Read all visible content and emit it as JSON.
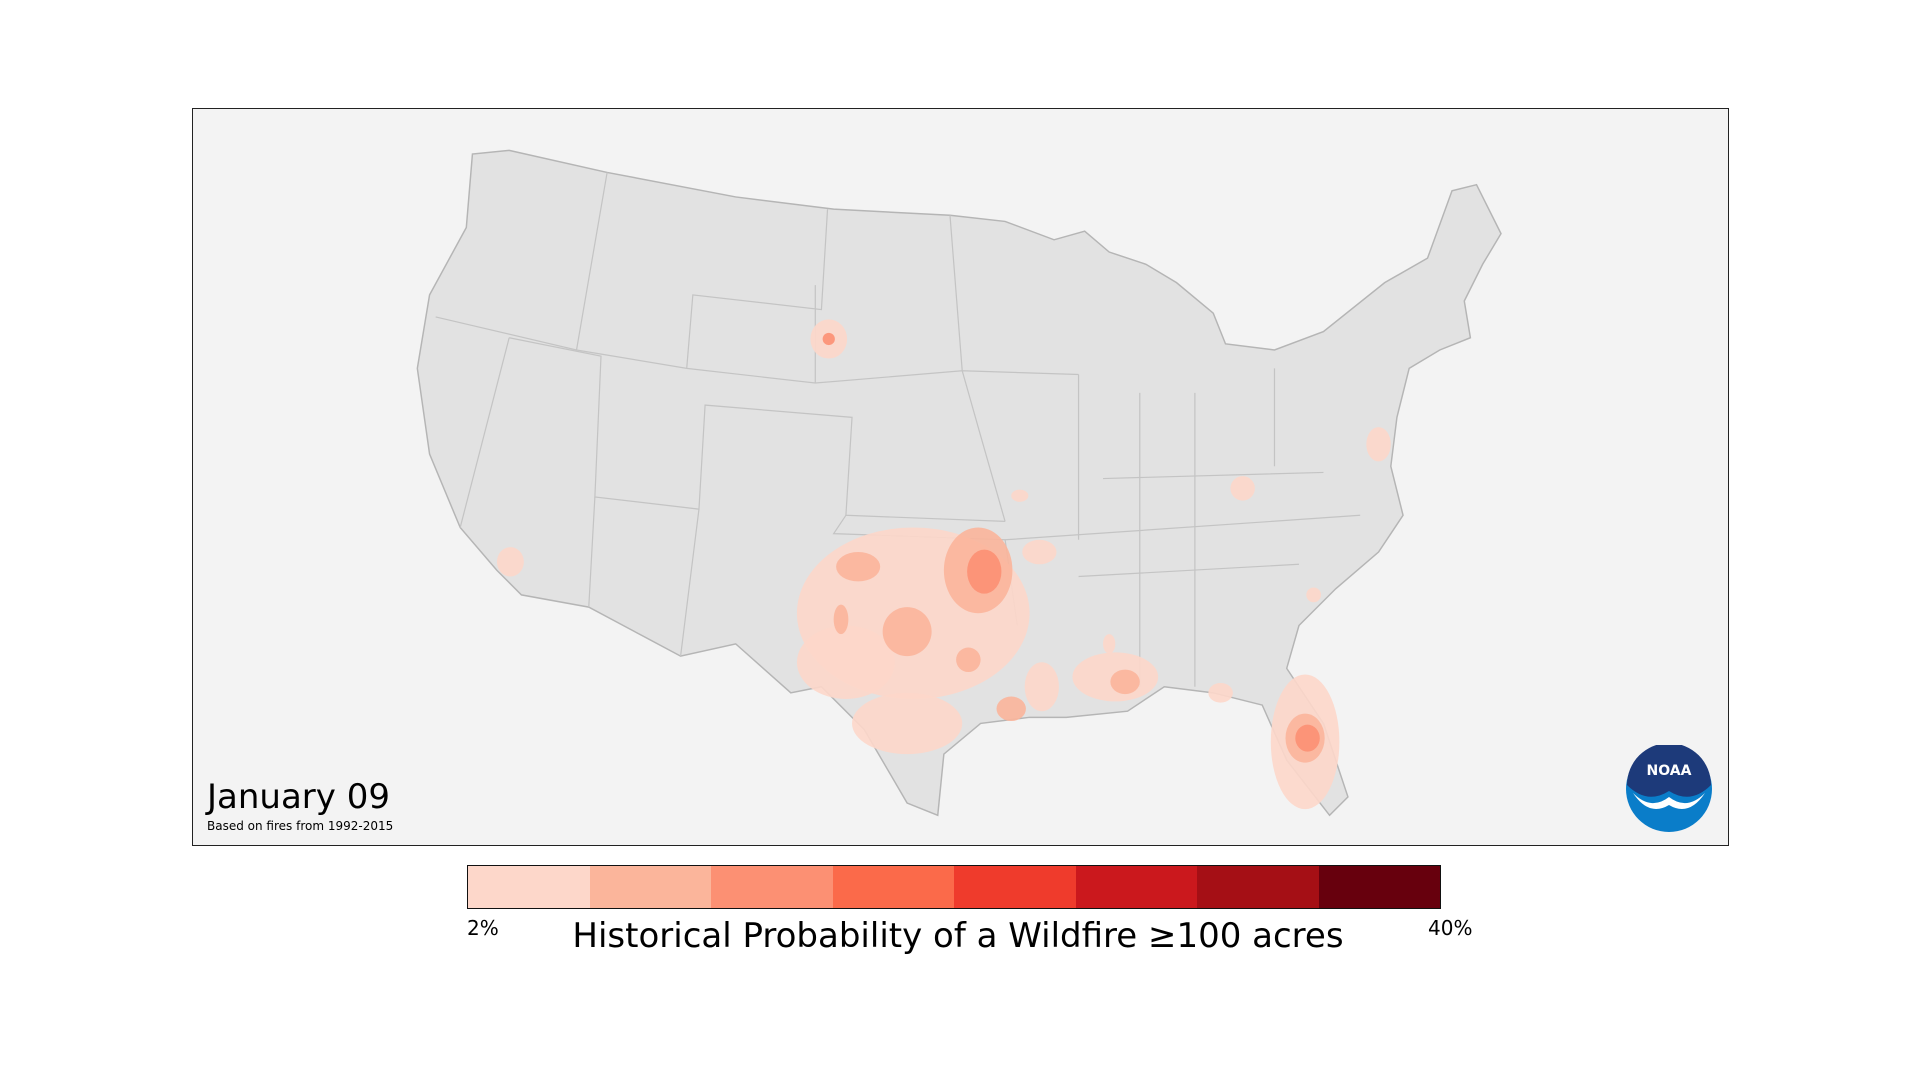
{
  "map": {
    "date": "January 09",
    "subtitle": "Based on fires from 1992-2015",
    "logo_text": "NOAA"
  },
  "legend": {
    "title": "Historical Probability of a Wildfire ≥100 acres",
    "min_label": "2%",
    "max_label": "40%",
    "colors": [
      "#fdd7ca",
      "#fbb59b",
      "#fc9073",
      "#fb6a4a",
      "#ef3b2c",
      "#cb181d",
      "#a50f15",
      "#67000d"
    ]
  },
  "colors": {
    "land": "#e2e2e2",
    "water": "#f3f3f3",
    "border": "#b5b5b5"
  }
}
